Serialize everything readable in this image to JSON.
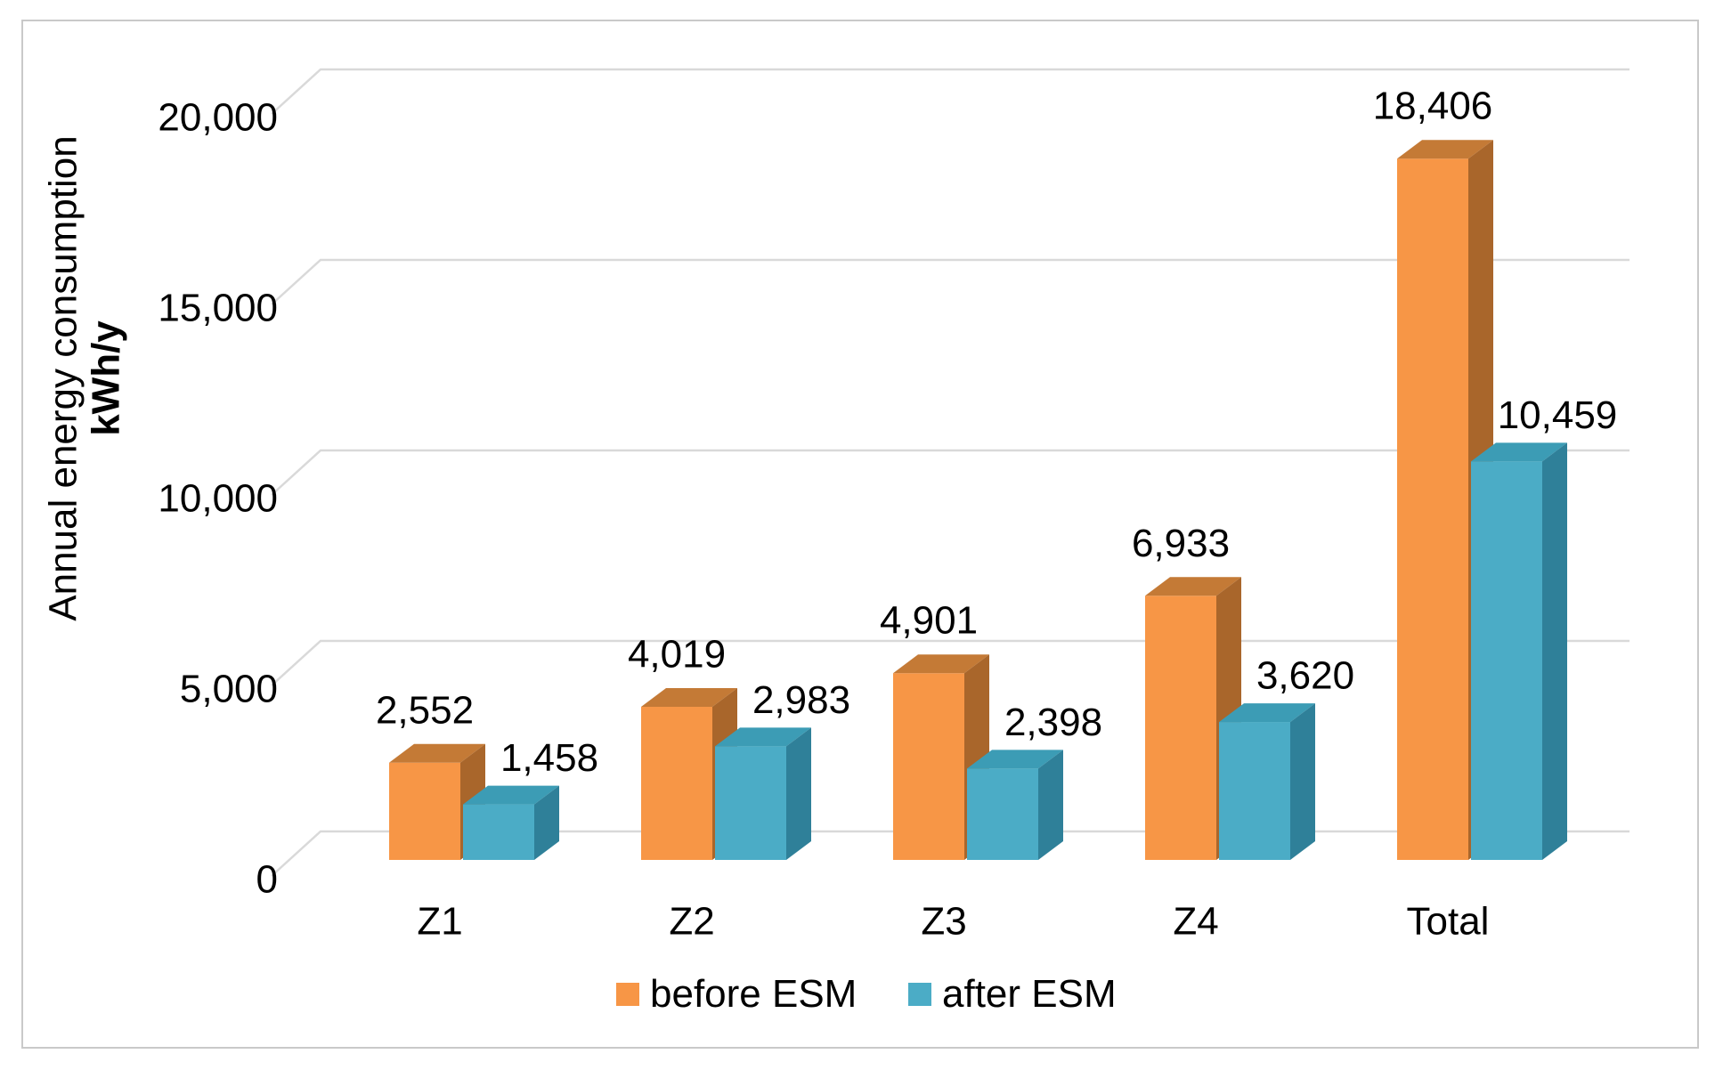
{
  "chart_data": {
    "type": "bar",
    "variant": "3d-clustered-column",
    "title": "",
    "categories": [
      "Z1",
      "Z2",
      "Z3",
      "Z4",
      "Total"
    ],
    "series": [
      {
        "name": "before ESM",
        "color": "#F79646",
        "color_top": "#C47A36",
        "color_side": "#A9662B",
        "values": [
          2552,
          4019,
          4901,
          6933,
          18406
        ],
        "value_labels": [
          "2,552",
          "4,019",
          "4,901",
          "6,933",
          "18,406"
        ]
      },
      {
        "name": "after ESM",
        "color": "#4BACC6",
        "color_top": "#3C9CB5",
        "color_side": "#2F8099",
        "values": [
          1458,
          2983,
          2398,
          3620,
          10459
        ],
        "value_labels": [
          "1,458",
          "2,983",
          "2,398",
          "3,620",
          "10,459"
        ]
      }
    ],
    "ylabel_line1": "Annual energy consumption",
    "ylabel_line2": "kWh/y",
    "xlabel": "",
    "ylim": [
      0,
      20000
    ],
    "yticks": [
      0,
      5000,
      10000,
      15000,
      20000
    ],
    "ytick_labels": [
      "0",
      "5,000",
      "10,000",
      "15,000",
      "20,000"
    ],
    "grid": true,
    "legend_position": "bottom",
    "colors": {
      "gridline": "#D9D9D9",
      "chart_border": "#C9C9C9",
      "text": "#000000",
      "background": "#FFFFFF"
    }
  }
}
